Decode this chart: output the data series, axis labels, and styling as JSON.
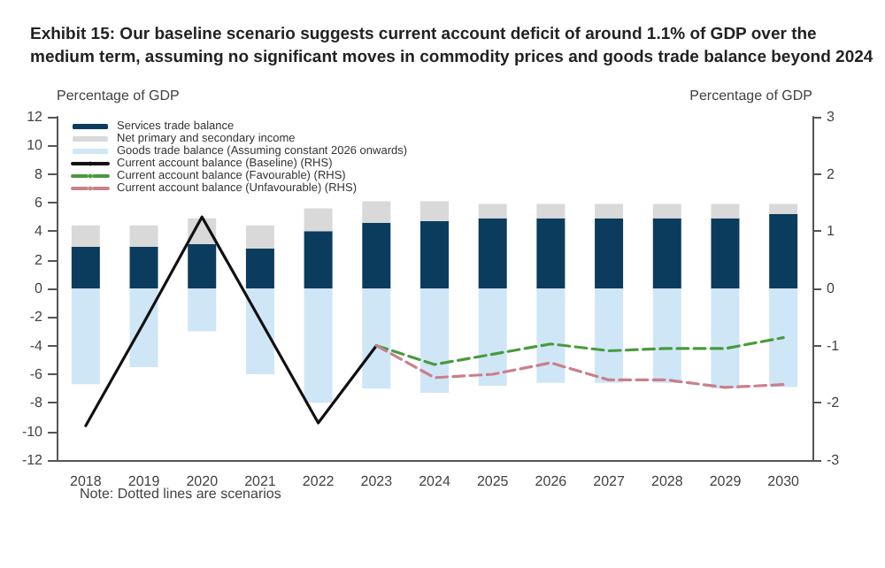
{
  "chart_data": {
    "type": "bar",
    "title": "Exhibit 15: Our baseline scenario suggests current account deficit of around 1.1% of GDP over the medium term, assuming no significant moves in commodity prices and goods trade balance beyond 2024",
    "ylabel": "Percentage of GDP",
    "y2label": "Percentage of GDP",
    "annotations": [
      "Note: Dotted lines are scenarios"
    ],
    "categories": [
      "2018",
      "2019",
      "2020",
      "2021",
      "2022",
      "2023",
      "2024",
      "2025",
      "2026",
      "2027",
      "2028",
      "2029",
      "2030"
    ],
    "stacked": true,
    "legend": "top left",
    "grid": false,
    "marker": "none",
    "ylim": [
      -12,
      12
    ],
    "yticks": [
      -12,
      -10,
      -8,
      -6,
      -4,
      -2,
      0,
      2,
      4,
      6,
      8,
      10,
      12
    ],
    "y2lim": [
      -3,
      3
    ],
    "y2ticks": [
      -3,
      -2,
      -1,
      0,
      1,
      2,
      3
    ],
    "series": [
      {
        "name": "Services trade balance",
        "color": "#0b3c5d",
        "values": [
          2.9,
          2.9,
          3.1,
          2.8,
          4.0,
          4.6,
          4.7,
          4.9,
          4.9,
          4.9,
          4.9,
          4.9,
          5.2
        ]
      },
      {
        "name": "Net primary and secondary income",
        "color": "#d9d9d9",
        "values": [
          1.5,
          1.5,
          1.8,
          1.6,
          1.6,
          1.5,
          1.4,
          1.0,
          1.0,
          1.0,
          1.0,
          1.0,
          0.7
        ]
      },
      {
        "name": "Goods trade balance (Assuming constant 2026 onwards)",
        "color": "#cfe6f7",
        "values": [
          -6.7,
          -5.5,
          -3.0,
          -6.0,
          -8.0,
          -7.0,
          -7.3,
          -6.8,
          -6.6,
          -6.6,
          -6.6,
          -7.0,
          -6.9
        ]
      },
      {
        "name": "Current account balance (Baseline) (RHS)",
        "type": "line",
        "axis": "y2",
        "line_style": "solid",
        "color": "#111111",
        "values": [
          -2.4,
          -0.6,
          1.25,
          -0.55,
          -2.35,
          -1.0,
          null,
          null,
          null,
          null,
          null,
          null,
          null
        ]
      },
      {
        "name": "Current account balance (Favourable) (RHS)",
        "type": "line",
        "axis": "y2",
        "line_style": "dashed",
        "color": "#4a9a3c",
        "values": [
          null,
          null,
          null,
          null,
          null,
          -1.0,
          -1.33,
          -1.15,
          -0.97,
          -1.09,
          -1.05,
          -1.05,
          -0.86
        ]
      },
      {
        "name": "Current account balance (Unfavourable) (RHS)",
        "type": "line",
        "axis": "y2",
        "line_style": "dashed",
        "color": "#c9808a",
        "values": [
          null,
          null,
          null,
          null,
          null,
          -1.0,
          -1.56,
          -1.5,
          -1.3,
          -1.6,
          -1.6,
          -1.73,
          -1.68
        ]
      }
    ]
  }
}
